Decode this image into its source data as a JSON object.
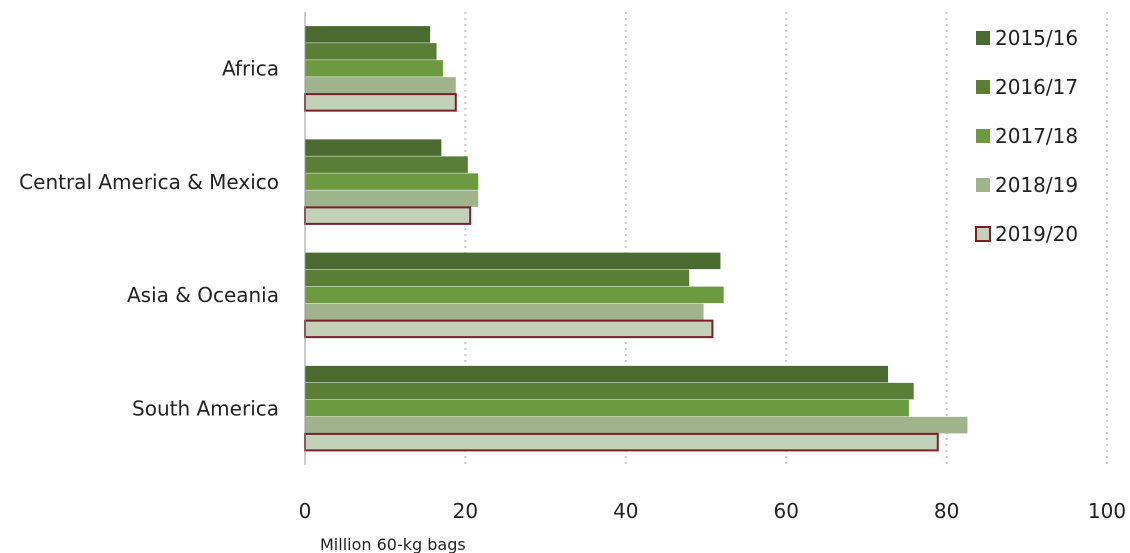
{
  "chart_data": {
    "type": "bar",
    "orientation": "horizontal",
    "categories": [
      "Africa",
      "Central America & Mexico",
      "Asia & Oceania",
      "South America"
    ],
    "series": [
      {
        "name": "2015/16",
        "values": [
          15.6,
          17.0,
          51.8,
          72.7
        ],
        "color": "#4a6b2f"
      },
      {
        "name": "2016/17",
        "values": [
          16.4,
          20.3,
          47.9,
          75.9
        ],
        "color": "#587f35"
      },
      {
        "name": "2017/18",
        "values": [
          17.2,
          21.6,
          52.2,
          75.3
        ],
        "color": "#6c9a41"
      },
      {
        "name": "2018/19",
        "values": [
          18.8,
          21.6,
          49.7,
          82.6
        ],
        "color": "#9fb48a"
      },
      {
        "name": "2019/20",
        "values": [
          18.8,
          20.6,
          50.8,
          78.9
        ],
        "color": "#c3d1b9",
        "outline": "#7a1e2a"
      }
    ],
    "xlim": [
      0,
      100
    ],
    "x_ticks": [
      "0",
      "20",
      "40",
      "60",
      "80",
      "100"
    ],
    "xlabel": "Million 60-kg bags",
    "grid": "vertical dotted",
    "legend_position": "right"
  }
}
